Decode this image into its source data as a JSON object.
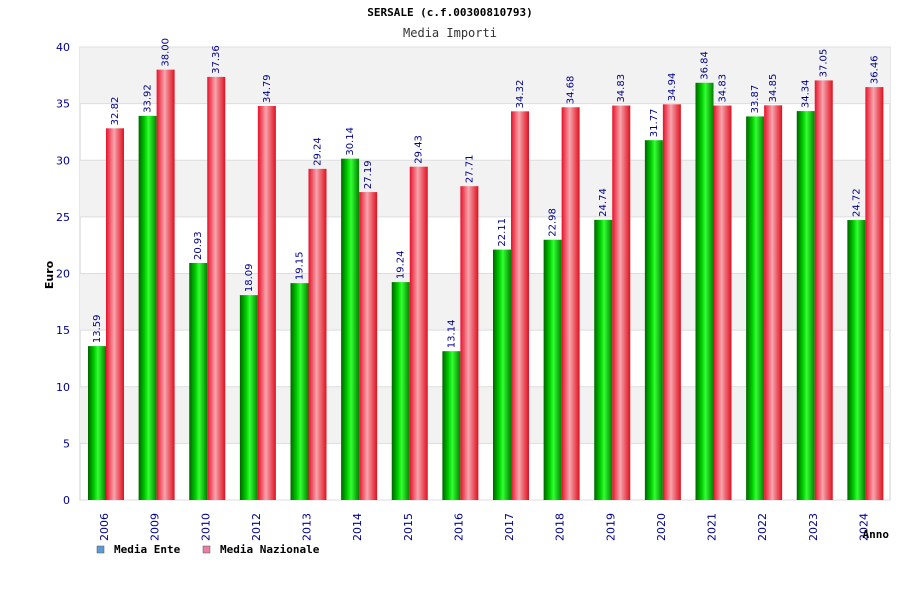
{
  "chart_data": {
    "type": "bar",
    "title": "SERSALE (c.f.00300810793)",
    "subtitle": "Media Importi",
    "ylabel": "Euro",
    "xlabel": "Anno",
    "ylim": [
      0,
      40
    ],
    "yticks": [
      0,
      5,
      10,
      15,
      20,
      25,
      30,
      35,
      40
    ],
    "categories": [
      "2006",
      "2009",
      "2010",
      "2012",
      "2013",
      "2014",
      "2015",
      "2016",
      "2017",
      "2018",
      "2019",
      "2020",
      "2021",
      "2022",
      "2023",
      "2024"
    ],
    "series": [
      {
        "name": "Media Ente",
        "color": "#00c000",
        "legend_color": "#5b9bd5",
        "values": [
          13.59,
          33.92,
          20.93,
          18.09,
          19.15,
          30.14,
          19.24,
          13.14,
          22.11,
          22.98,
          24.74,
          31.77,
          36.84,
          33.87,
          34.34,
          24.72
        ],
        "labels": [
          "13.59",
          "33.92",
          "20.93",
          "18.09",
          "19.15",
          "30.14",
          "19.24",
          "13.14",
          "22.11",
          "22.98",
          "24.74",
          "31.77",
          "36.84",
          "33.87",
          "34.34",
          "24.72"
        ]
      },
      {
        "name": "Media Nazionale",
        "color": "#e8202a",
        "legend_color": "#e87fa8",
        "values": [
          32.82,
          38.0,
          37.36,
          34.79,
          29.24,
          27.19,
          29.43,
          27.71,
          34.32,
          34.68,
          34.83,
          34.94,
          34.83,
          34.85,
          37.05,
          36.46
        ],
        "labels": [
          "32.82",
          "38.00",
          "37.36",
          "34.79",
          "29.24",
          "27.19",
          "29.43",
          "27.71",
          "34.32",
          "34.68",
          "34.83",
          "34.94",
          "34.83",
          "34.85",
          "37.05",
          "36.46"
        ]
      }
    ],
    "grid": true,
    "legend": "bottom-left"
  }
}
